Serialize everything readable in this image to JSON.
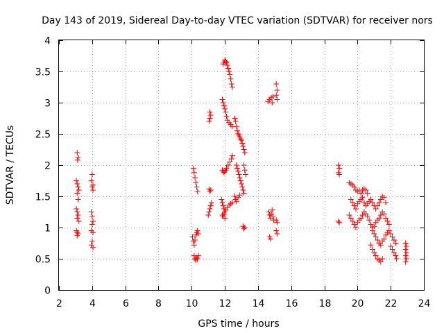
{
  "chart_data": {
    "type": "scatter",
    "title": "Day 143 of 2019, Sidereal Day-to-day VTEC variation (SDTVAR) for receiver nors",
    "xlabel": "GPS time / hours",
    "ylabel": "SDTVAR / TECUs",
    "xlim": [
      2,
      24
    ],
    "ylim": [
      0,
      4
    ],
    "xticks": [
      "2",
      "4",
      "6",
      "8",
      "10",
      "12",
      "14",
      "16",
      "18",
      "20",
      "22",
      "24"
    ],
    "yticks": [
      "0",
      "0.5",
      "1",
      "1.5",
      "2",
      "2.5",
      "3",
      "3.5",
      "4"
    ],
    "grid": true,
    "marker": "plus",
    "color": "#ff0000",
    "series": [
      {
        "name": "SDTVAR",
        "points": [
          [
            3.1,
            2.2
          ],
          [
            3.15,
            2.12
          ],
          [
            3.12,
            2.08
          ],
          [
            3.05,
            1.75
          ],
          [
            3.1,
            1.7
          ],
          [
            3.15,
            1.65
          ],
          [
            3.2,
            1.6
          ],
          [
            3.1,
            1.55
          ],
          [
            3.15,
            1.45
          ],
          [
            3.05,
            1.3
          ],
          [
            3.1,
            1.25
          ],
          [
            3.15,
            1.2
          ],
          [
            3.1,
            1.15
          ],
          [
            3.2,
            1.1
          ],
          [
            3.05,
            0.95
          ],
          [
            3.1,
            0.92
          ],
          [
            3.15,
            0.9
          ],
          [
            3.1,
            0.87
          ],
          [
            4.0,
            1.85
          ],
          [
            3.95,
            1.75
          ],
          [
            4.05,
            1.68
          ],
          [
            4.0,
            1.65
          ],
          [
            4.05,
            1.6
          ],
          [
            3.95,
            1.25
          ],
          [
            4.0,
            1.18
          ],
          [
            4.05,
            1.1
          ],
          [
            4.0,
            1.05
          ],
          [
            3.95,
            0.95
          ],
          [
            4.05,
            0.92
          ],
          [
            4.0,
            0.78
          ],
          [
            3.95,
            0.72
          ],
          [
            4.05,
            0.68
          ],
          [
            10.1,
            1.95
          ],
          [
            10.15,
            1.88
          ],
          [
            10.2,
            1.8
          ],
          [
            10.25,
            1.72
          ],
          [
            10.3,
            1.65
          ],
          [
            10.35,
            1.58
          ],
          [
            10.05,
            0.85
          ],
          [
            10.1,
            0.78
          ],
          [
            10.15,
            0.72
          ],
          [
            10.2,
            0.8
          ],
          [
            10.25,
            0.88
          ],
          [
            10.3,
            0.92
          ],
          [
            10.35,
            0.95
          ],
          [
            10.4,
            0.9
          ],
          [
            10.15,
            0.55
          ],
          [
            10.2,
            0.5
          ],
          [
            10.25,
            0.48
          ],
          [
            10.3,
            0.52
          ],
          [
            10.35,
            0.5
          ],
          [
            10.4,
            0.55
          ],
          [
            11.05,
            1.62
          ],
          [
            11.1,
            1.58
          ],
          [
            11.15,
            1.6
          ],
          [
            11.0,
            1.2
          ],
          [
            11.05,
            1.25
          ],
          [
            11.1,
            1.3
          ],
          [
            11.15,
            1.35
          ],
          [
            11.2,
            1.4
          ],
          [
            11.1,
            2.85
          ],
          [
            11.15,
            2.8
          ],
          [
            11.1,
            2.75
          ],
          [
            11.05,
            2.7
          ],
          [
            11.9,
            3.62
          ],
          [
            11.95,
            3.65
          ],
          [
            12.0,
            3.68
          ],
          [
            12.05,
            3.66
          ],
          [
            12.1,
            3.64
          ],
          [
            12.15,
            3.6
          ],
          [
            12.2,
            3.55
          ],
          [
            12.25,
            3.5
          ],
          [
            12.3,
            3.45
          ],
          [
            12.35,
            3.38
          ],
          [
            12.4,
            3.3
          ],
          [
            12.45,
            3.25
          ],
          [
            11.85,
            3.05
          ],
          [
            11.9,
            3.0
          ],
          [
            11.95,
            2.95
          ],
          [
            12.0,
            2.9
          ],
          [
            12.05,
            2.85
          ],
          [
            12.1,
            2.78
          ],
          [
            12.15,
            2.72
          ],
          [
            12.25,
            2.68
          ],
          [
            12.35,
            2.65
          ],
          [
            12.45,
            2.62
          ],
          [
            11.85,
            1.92
          ],
          [
            11.9,
            1.9
          ],
          [
            11.95,
            1.88
          ],
          [
            12.0,
            1.9
          ],
          [
            12.05,
            1.92
          ],
          [
            12.1,
            1.95
          ],
          [
            12.2,
            2.0
          ],
          [
            12.3,
            2.05
          ],
          [
            12.4,
            2.1
          ],
          [
            12.45,
            2.15
          ],
          [
            11.8,
            1.45
          ],
          [
            11.85,
            1.4
          ],
          [
            11.9,
            1.35
          ],
          [
            11.95,
            1.3
          ],
          [
            12.0,
            1.25
          ],
          [
            12.05,
            1.28
          ],
          [
            12.15,
            1.32
          ],
          [
            12.25,
            1.36
          ],
          [
            12.35,
            1.38
          ],
          [
            12.45,
            1.4
          ],
          [
            11.85,
            1.2
          ],
          [
            11.9,
            1.18
          ],
          [
            11.95,
            1.22
          ],
          [
            12.0,
            1.15
          ],
          [
            12.6,
            2.75
          ],
          [
            12.65,
            2.7
          ],
          [
            12.7,
            2.62
          ],
          [
            12.75,
            2.55
          ],
          [
            12.8,
            2.5
          ],
          [
            12.85,
            2.48
          ],
          [
            12.9,
            2.45
          ],
          [
            12.95,
            2.42
          ],
          [
            13.0,
            2.4
          ],
          [
            13.05,
            2.35
          ],
          [
            13.1,
            2.3
          ],
          [
            13.15,
            2.25
          ],
          [
            13.2,
            2.2
          ],
          [
            12.7,
            2.0
          ],
          [
            12.75,
            1.95
          ],
          [
            12.8,
            1.9
          ],
          [
            12.85,
            1.85
          ],
          [
            12.9,
            1.8
          ],
          [
            12.95,
            1.75
          ],
          [
            13.0,
            1.7
          ],
          [
            13.05,
            1.65
          ],
          [
            13.1,
            1.6
          ],
          [
            13.15,
            1.55
          ],
          [
            12.6,
            1.5
          ],
          [
            12.65,
            1.45
          ],
          [
            12.7,
            1.42
          ],
          [
            12.8,
            1.48
          ],
          [
            12.9,
            1.52
          ],
          [
            13.15,
            2.0
          ],
          [
            13.2,
            1.92
          ],
          [
            13.25,
            1.85
          ],
          [
            13.1,
            1.02
          ],
          [
            13.15,
            0.98
          ],
          [
            13.2,
            1.0
          ],
          [
            14.6,
            3.02
          ],
          [
            14.7,
            3.05
          ],
          [
            14.8,
            3.08
          ],
          [
            14.9,
            3.1
          ],
          [
            14.85,
            3.0
          ],
          [
            14.65,
            1.25
          ],
          [
            14.7,
            1.2
          ],
          [
            14.75,
            1.15
          ],
          [
            14.8,
            1.22
          ],
          [
            14.85,
            1.28
          ],
          [
            14.9,
            1.18
          ],
          [
            14.95,
            1.12
          ],
          [
            14.7,
            0.85
          ],
          [
            14.75,
            0.82
          ],
          [
            15.1,
            3.3
          ],
          [
            15.15,
            3.2
          ],
          [
            15.1,
            3.12
          ],
          [
            15.15,
            3.05
          ],
          [
            15.1,
            1.12
          ],
          [
            15.15,
            1.08
          ],
          [
            15.1,
            0.95
          ],
          [
            15.15,
            0.9
          ],
          [
            18.85,
            2.0
          ],
          [
            18.9,
            1.95
          ],
          [
            18.85,
            1.88
          ],
          [
            18.9,
            1.85
          ],
          [
            18.85,
            1.1
          ],
          [
            18.9,
            1.08
          ],
          [
            19.5,
            1.72
          ],
          [
            19.6,
            1.7
          ],
          [
            19.7,
            1.68
          ],
          [
            19.8,
            1.65
          ],
          [
            19.9,
            1.6
          ],
          [
            20.0,
            1.58
          ],
          [
            20.1,
            1.6
          ],
          [
            20.2,
            1.55
          ],
          [
            20.3,
            1.6
          ],
          [
            20.4,
            1.62
          ],
          [
            20.5,
            1.6
          ],
          [
            20.6,
            1.55
          ],
          [
            19.6,
            1.45
          ],
          [
            19.7,
            1.4
          ],
          [
            19.8,
            1.35
          ],
          [
            19.9,
            1.3
          ],
          [
            20.0,
            1.38
          ],
          [
            20.1,
            1.42
          ],
          [
            20.2,
            1.45
          ],
          [
            20.3,
            1.48
          ],
          [
            20.4,
            1.4
          ],
          [
            20.5,
            1.35
          ],
          [
            20.6,
            1.38
          ],
          [
            20.7,
            1.42
          ],
          [
            20.8,
            1.45
          ],
          [
            20.9,
            1.4
          ],
          [
            21.0,
            1.35
          ],
          [
            21.1,
            1.3
          ],
          [
            21.2,
            1.35
          ],
          [
            21.3,
            1.4
          ],
          [
            21.4,
            1.45
          ],
          [
            21.5,
            1.5
          ],
          [
            21.6,
            1.48
          ],
          [
            21.7,
            1.4
          ],
          [
            19.5,
            1.2
          ],
          [
            19.6,
            1.15
          ],
          [
            19.7,
            1.1
          ],
          [
            19.8,
            1.05
          ],
          [
            19.9,
            1.0
          ],
          [
            20.0,
            1.08
          ],
          [
            20.1,
            1.12
          ],
          [
            20.2,
            1.15
          ],
          [
            20.3,
            1.2
          ],
          [
            20.4,
            1.25
          ],
          [
            20.5,
            1.22
          ],
          [
            20.6,
            1.18
          ],
          [
            20.7,
            1.12
          ],
          [
            20.8,
            1.05
          ],
          [
            20.9,
            1.0
          ],
          [
            21.0,
            1.02
          ],
          [
            21.1,
            1.08
          ],
          [
            21.2,
            1.12
          ],
          [
            21.3,
            1.15
          ],
          [
            21.4,
            1.2
          ],
          [
            21.5,
            1.25
          ],
          [
            21.6,
            1.22
          ],
          [
            21.7,
            1.15
          ],
          [
            21.8,
            1.1
          ],
          [
            21.9,
            1.05
          ],
          [
            20.9,
            0.95
          ],
          [
            21.0,
            0.9
          ],
          [
            21.1,
            0.85
          ],
          [
            21.2,
            0.8
          ],
          [
            21.3,
            0.75
          ],
          [
            21.4,
            0.72
          ],
          [
            21.5,
            0.78
          ],
          [
            21.6,
            0.82
          ],
          [
            21.7,
            0.88
          ],
          [
            21.8,
            0.92
          ],
          [
            21.9,
            0.95
          ],
          [
            22.0,
            0.9
          ],
          [
            22.1,
            0.85
          ],
          [
            22.2,
            0.8
          ],
          [
            22.3,
            0.75
          ],
          [
            20.8,
            0.72
          ],
          [
            20.9,
            0.65
          ],
          [
            21.0,
            0.6
          ],
          [
            21.1,
            0.55
          ],
          [
            21.2,
            0.5
          ],
          [
            21.3,
            0.48
          ],
          [
            21.4,
            0.45
          ],
          [
            21.5,
            0.5
          ],
          [
            22.0,
            0.7
          ],
          [
            22.1,
            0.65
          ],
          [
            22.2,
            0.6
          ],
          [
            22.3,
            0.55
          ],
          [
            22.35,
            0.5
          ],
          [
            22.9,
            0.75
          ],
          [
            22.95,
            0.7
          ],
          [
            22.9,
            0.65
          ],
          [
            22.95,
            0.6
          ],
          [
            22.9,
            0.55
          ],
          [
            22.95,
            0.5
          ],
          [
            22.9,
            0.45
          ]
        ]
      }
    ]
  }
}
